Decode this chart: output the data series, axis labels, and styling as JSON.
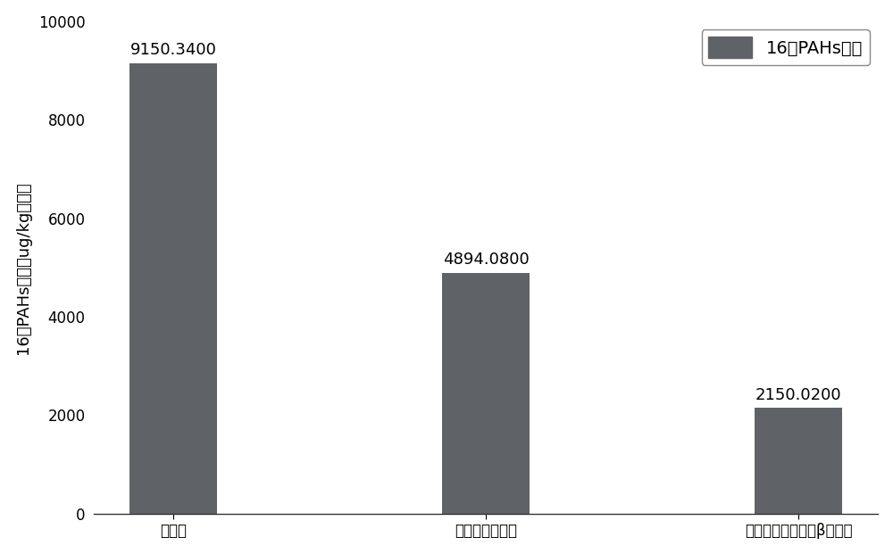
{
  "categories": [
    "修复前",
    "添加微生物菌剂",
    "添加微生物菌剂和β环糊精"
  ],
  "values": [
    9150.34,
    4894.08,
    2150.02
  ],
  "value_labels": [
    "9150.3400",
    "4894.0800",
    "2150.0200"
  ],
  "bar_color": "#5f6367",
  "ylabel": "16种PAHs总量（ug/kg土壤）",
  "legend_label": "16种PAHs总量",
  "ylim": [
    0,
    10000
  ],
  "yticks": [
    0,
    2000,
    4000,
    6000,
    8000,
    10000
  ],
  "background_color": "#ffffff",
  "bar_width": 0.28,
  "label_fontsize": 13,
  "tick_fontsize": 12,
  "legend_fontsize": 14,
  "ylabel_fontsize": 13
}
